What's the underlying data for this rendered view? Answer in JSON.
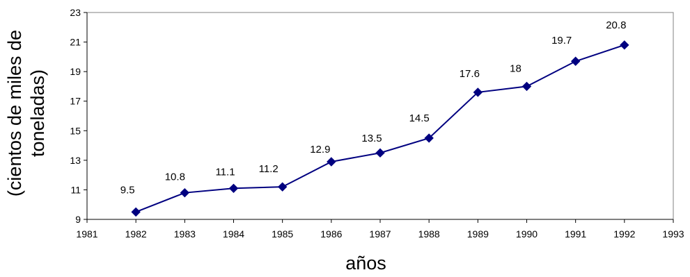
{
  "chart_data": {
    "type": "line",
    "x": [
      1982,
      1983,
      1984,
      1985,
      1986,
      1987,
      1988,
      1989,
      1990,
      1991,
      1992
    ],
    "series": [
      {
        "values": [
          9.5,
          10.8,
          11.1,
          11.2,
          12.9,
          13.5,
          14.5,
          17.6,
          18,
          19.7,
          20.8
        ],
        "color": "#000080"
      }
    ],
    "data_labels": [
      "9.5",
      "10.8",
      "11.1",
      "11.2",
      "12.9",
      "13.5",
      "14.5",
      "17.6",
      "18",
      "19.7",
      "20.8"
    ],
    "xlabel": "años",
    "ylabel_lines": [
      "(cientos de miles de",
      "toneladas)"
    ],
    "xlim": [
      1981,
      1993
    ],
    "ylim": [
      9,
      23
    ],
    "x_ticks": [
      "1981",
      "1982",
      "1983",
      "1984",
      "1985",
      "1986",
      "1987",
      "1988",
      "1989",
      "1990",
      "1991",
      "1992",
      "1993"
    ],
    "y_ticks": [
      "9",
      "11",
      "13",
      "15",
      "17",
      "19",
      "21",
      "23"
    ],
    "grid": false,
    "legend": "none",
    "marker": "diamond"
  }
}
